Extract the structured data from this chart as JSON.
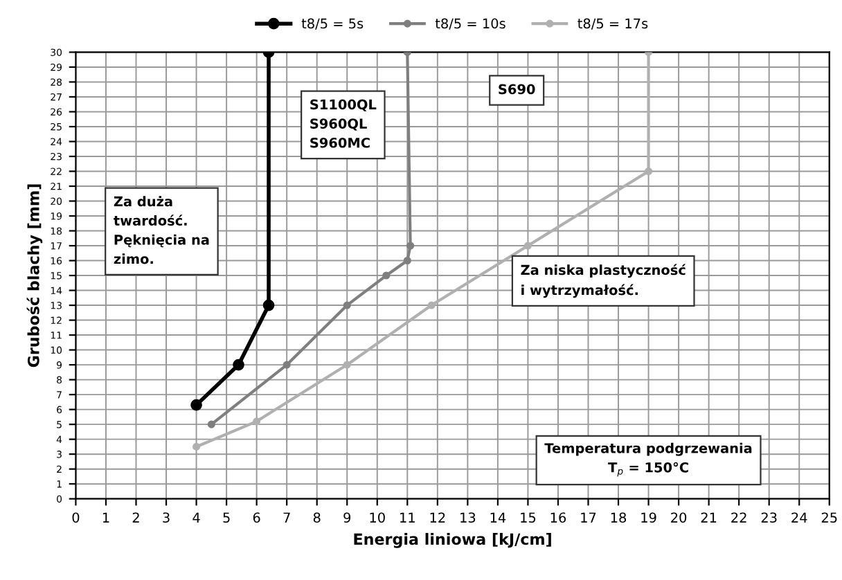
{
  "chart_data": {
    "type": "line",
    "xlabel": "Energia liniowa [kJ/cm]",
    "ylabel": "Grubość blachy [mm]",
    "xlim": [
      0,
      25
    ],
    "xticks": [
      0,
      1,
      2,
      3,
      4,
      5,
      6,
      7,
      8,
      9,
      10,
      11,
      12,
      13,
      14,
      15,
      16,
      17,
      18,
      19,
      20,
      21,
      22,
      23,
      24,
      25
    ],
    "ylim": [
      0,
      30
    ],
    "yticks": [
      0,
      1,
      2,
      3,
      4,
      5,
      6,
      7,
      8,
      9,
      10,
      11,
      12,
      13,
      14,
      15,
      16,
      17,
      18,
      19,
      20,
      21,
      22,
      23,
      24,
      25,
      26,
      27,
      28,
      29,
      30
    ],
    "grid": true,
    "legend": "top",
    "marker": "circle",
    "line_style": "solid",
    "series": [
      {
        "name": "t8/5 = 5s",
        "color": "#000000",
        "x": [
          4,
          5.4,
          6.4,
          6.4
        ],
        "values": [
          6.3,
          9,
          13,
          30
        ]
      },
      {
        "name": "t8/5 = 10s",
        "color": "#7f7f7f",
        "x": [
          4.5,
          7,
          9,
          10.3,
          11,
          11.1,
          11
        ],
        "values": [
          5,
          9,
          13,
          15,
          16,
          17,
          30
        ]
      },
      {
        "name": "t8/5 = 17s",
        "color": "#b0b0b0",
        "x": [
          4,
          6,
          9,
          11.8,
          15,
          19,
          19
        ],
        "values": [
          3.5,
          5.2,
          9,
          13,
          17,
          22,
          30
        ]
      }
    ],
    "annotations": [
      "Za duża\ntwardość.\nPęknięcia na\nzimo.",
      "S1100QL\nS960QL\nS960MC",
      "S690",
      "Za niska plastyczność\ni wytrzymałość.",
      "Temperatura podgrzewania\nT$_{p}$ = 150°C"
    ]
  }
}
